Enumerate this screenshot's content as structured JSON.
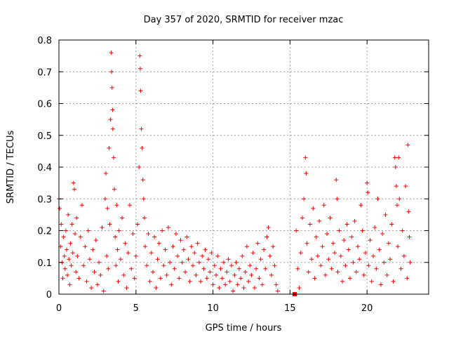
{
  "chart_data": {
    "type": "scatter",
    "title": "Day 357 of 2020, SRMTID for receiver mzac",
    "xlabel": "GPS time / hours",
    "ylabel": "SRMTID / TECUs",
    "xlim": [
      0,
      24
    ],
    "ylim": [
      0,
      0.8
    ],
    "x_ticks": [
      0,
      5,
      10,
      15,
      20
    ],
    "y_ticks": [
      0,
      0.1,
      0.2,
      0.3,
      0.4,
      0.5,
      0.6,
      0.7,
      0.8
    ],
    "x_tick_labels": [
      "0",
      "5",
      "10",
      "15",
      "20"
    ],
    "y_tick_labels": [
      "0",
      "0.1",
      "0.2",
      "0.3",
      "0.4",
      "0.5",
      "0.6",
      "0.7",
      "0.8"
    ],
    "grid": true,
    "marker": "plus",
    "marker_color": "#ff0000",
    "data_gap_hours": [
      14.2,
      15.3
    ],
    "outlier_marker": {
      "x": 15.3,
      "y": 0.0,
      "shape": "square"
    },
    "series": [
      {
        "name": "SRMTID",
        "points": [
          [
            0.0,
            0.3
          ],
          [
            0.05,
            0.27
          ],
          [
            0.1,
            0.15
          ],
          [
            0.15,
            0.22
          ],
          [
            0.2,
            0.1
          ],
          [
            0.25,
            0.05
          ],
          [
            0.3,
            0.18
          ],
          [
            0.35,
            0.12
          ],
          [
            0.4,
            0.08
          ],
          [
            0.45,
            0.2
          ],
          [
            0.5,
            0.14
          ],
          [
            0.55,
            0.06
          ],
          [
            0.6,
            0.25
          ],
          [
            0.65,
            0.11
          ],
          [
            0.7,
            0.03
          ],
          [
            0.75,
            0.16
          ],
          [
            0.8,
            0.09
          ],
          [
            0.85,
            0.22
          ],
          [
            0.9,
            0.13
          ],
          [
            0.95,
            0.35
          ],
          [
            1.0,
            0.33
          ],
          [
            1.05,
            0.19
          ],
          [
            1.1,
            0.07
          ],
          [
            1.15,
            0.24
          ],
          [
            1.2,
            0.12
          ],
          [
            1.3,
            0.05
          ],
          [
            1.4,
            0.18
          ],
          [
            1.5,
            0.28
          ],
          [
            1.6,
            0.09
          ],
          [
            1.7,
            0.15
          ],
          [
            1.8,
            0.04
          ],
          [
            1.9,
            0.2
          ],
          [
            2.0,
            0.11
          ],
          [
            2.1,
            0.02
          ],
          [
            2.2,
            0.14
          ],
          [
            2.3,
            0.07
          ],
          [
            2.4,
            0.17
          ],
          [
            2.5,
            0.03
          ],
          [
            2.6,
            0.1
          ],
          [
            2.7,
            0.06
          ],
          [
            2.8,
            0.21
          ],
          [
            2.9,
            0.01
          ],
          [
            3.0,
            0.3
          ],
          [
            3.05,
            0.38
          ],
          [
            3.1,
            0.12
          ],
          [
            3.15,
            0.27
          ],
          [
            3.2,
            0.08
          ],
          [
            3.25,
            0.46
          ],
          [
            3.3,
            0.22
          ],
          [
            3.35,
            0.55
          ],
          [
            3.4,
            0.76
          ],
          [
            3.42,
            0.7
          ],
          [
            3.45,
            0.65
          ],
          [
            3.48,
            0.58
          ],
          [
            3.5,
            0.52
          ],
          [
            3.55,
            0.43
          ],
          [
            3.6,
            0.33
          ],
          [
            3.65,
            0.18
          ],
          [
            3.7,
            0.09
          ],
          [
            3.75,
            0.28
          ],
          [
            3.8,
            0.14
          ],
          [
            3.85,
            0.04
          ],
          [
            3.9,
            0.2
          ],
          [
            4.0,
            0.11
          ],
          [
            4.1,
            0.24
          ],
          [
            4.2,
            0.06
          ],
          [
            4.3,
            0.16
          ],
          [
            4.4,
            0.02
          ],
          [
            4.5,
            0.13
          ],
          [
            4.6,
            0.28
          ],
          [
            4.7,
            0.08
          ],
          [
            4.8,
            0.19
          ],
          [
            4.9,
            0.05
          ],
          [
            5.0,
            0.12
          ],
          [
            5.1,
            0.22
          ],
          [
            5.2,
            0.4
          ],
          [
            5.25,
            0.75
          ],
          [
            5.28,
            0.71
          ],
          [
            5.3,
            0.64
          ],
          [
            5.35,
            0.52
          ],
          [
            5.4,
            0.46
          ],
          [
            5.45,
            0.36
          ],
          [
            5.5,
            0.3
          ],
          [
            5.55,
            0.24
          ],
          [
            5.6,
            0.15
          ],
          [
            5.7,
            0.09
          ],
          [
            5.8,
            0.19
          ],
          [
            5.9,
            0.04
          ],
          [
            6.0,
            0.13
          ],
          [
            6.1,
            0.07
          ],
          [
            6.2,
            0.18
          ],
          [
            6.3,
            0.02
          ],
          [
            6.4,
            0.11
          ],
          [
            6.5,
            0.16
          ],
          [
            6.6,
            0.05
          ],
          [
            6.7,
            0.2
          ],
          [
            6.8,
            0.09
          ],
          [
            6.9,
            0.14
          ],
          [
            7.0,
            0.06
          ],
          [
            7.1,
            0.21
          ],
          [
            7.2,
            0.1
          ],
          [
            7.3,
            0.03
          ],
          [
            7.4,
            0.15
          ],
          [
            7.5,
            0.08
          ],
          [
            7.6,
            0.19
          ],
          [
            7.7,
            0.12
          ],
          [
            7.8,
            0.05
          ],
          [
            7.9,
            0.17
          ],
          [
            8.0,
            0.1
          ],
          [
            8.1,
            0.14
          ],
          [
            8.2,
            0.07
          ],
          [
            8.3,
            0.18
          ],
          [
            8.4,
            0.11
          ],
          [
            8.5,
            0.04
          ],
          [
            8.6,
            0.15
          ],
          [
            8.7,
            0.09
          ],
          [
            8.8,
            0.13
          ],
          [
            8.9,
            0.06
          ],
          [
            9.0,
            0.16
          ],
          [
            9.1,
            0.1
          ],
          [
            9.2,
            0.04
          ],
          [
            9.3,
            0.12
          ],
          [
            9.4,
            0.08
          ],
          [
            9.5,
            0.14
          ],
          [
            9.6,
            0.05
          ],
          [
            9.7,
            0.11
          ],
          [
            9.8,
            0.07
          ],
          [
            9.9,
            0.13
          ],
          [
            10.0,
            0.03
          ],
          [
            10.1,
            0.09
          ],
          [
            10.2,
            0.06
          ],
          [
            10.3,
            0.12
          ],
          [
            10.4,
            0.02
          ],
          [
            10.5,
            0.08
          ],
          [
            10.6,
            0.05
          ],
          [
            10.7,
            0.1
          ],
          [
            10.8,
            0.03
          ],
          [
            10.9,
            0.07
          ],
          [
            11.0,
            0.11
          ],
          [
            11.1,
            0.04
          ],
          [
            11.2,
            0.09
          ],
          [
            11.3,
            0.01
          ],
          [
            11.4,
            0.06
          ],
          [
            11.5,
            0.1
          ],
          [
            11.6,
            0.03
          ],
          [
            11.7,
            0.08
          ],
          [
            11.8,
            0.05
          ],
          [
            11.9,
            0.12
          ],
          [
            12.0,
            0.02
          ],
          [
            12.1,
            0.07
          ],
          [
            12.2,
            0.15
          ],
          [
            12.3,
            0.04
          ],
          [
            12.4,
            0.09
          ],
          [
            12.5,
            0.06
          ],
          [
            12.6,
            0.13
          ],
          [
            12.7,
            0.02
          ],
          [
            12.8,
            0.08
          ],
          [
            12.9,
            0.16
          ],
          [
            13.0,
            0.05
          ],
          [
            13.1,
            0.11
          ],
          [
            13.2,
            0.03
          ],
          [
            13.3,
            0.14
          ],
          [
            13.4,
            0.08
          ],
          [
            13.5,
            0.18
          ],
          [
            13.6,
            0.21
          ],
          [
            13.7,
            0.12
          ],
          [
            13.8,
            0.06
          ],
          [
            13.9,
            0.15
          ],
          [
            14.0,
            0.09
          ],
          [
            14.1,
            0.03
          ],
          [
            14.2,
            0.01
          ],
          [
            15.4,
            0.2
          ],
          [
            15.5,
            0.08
          ],
          [
            15.6,
            0.02
          ],
          [
            15.7,
            0.13
          ],
          [
            15.8,
            0.24
          ],
          [
            15.9,
            0.3
          ],
          [
            16.0,
            0.43
          ],
          [
            16.05,
            0.38
          ],
          [
            16.1,
            0.16
          ],
          [
            16.2,
            0.07
          ],
          [
            16.3,
            0.22
          ],
          [
            16.4,
            0.11
          ],
          [
            16.5,
            0.27
          ],
          [
            16.6,
            0.05
          ],
          [
            16.7,
            0.18
          ],
          [
            16.8,
            0.12
          ],
          [
            16.9,
            0.23
          ],
          [
            17.0,
            0.09
          ],
          [
            17.1,
            0.15
          ],
          [
            17.2,
            0.28
          ],
          [
            17.3,
            0.06
          ],
          [
            17.4,
            0.19
          ],
          [
            17.5,
            0.11
          ],
          [
            17.6,
            0.24
          ],
          [
            17.7,
            0.08
          ],
          [
            17.8,
            0.16
          ],
          [
            17.9,
            0.13
          ],
          [
            18.0,
            0.36
          ],
          [
            18.05,
            0.3
          ],
          [
            18.1,
            0.07
          ],
          [
            18.2,
            0.2
          ],
          [
            18.3,
            0.12
          ],
          [
            18.4,
            0.04
          ],
          [
            18.5,
            0.17
          ],
          [
            18.6,
            0.09
          ],
          [
            18.7,
            0.22
          ],
          [
            18.8,
            0.14
          ],
          [
            18.9,
            0.05
          ],
          [
            19.0,
            0.18
          ],
          [
            19.1,
            0.1
          ],
          [
            19.2,
            0.23
          ],
          [
            19.3,
            0.07
          ],
          [
            19.4,
            0.15
          ],
          [
            19.5,
            0.11
          ],
          [
            19.6,
            0.28
          ],
          [
            19.7,
            0.2
          ],
          [
            19.8,
            0.06
          ],
          [
            19.9,
            0.13
          ],
          [
            20.0,
            0.35
          ],
          [
            20.05,
            0.32
          ],
          [
            20.1,
            0.09
          ],
          [
            20.2,
            0.17
          ],
          [
            20.3,
            0.04
          ],
          [
            20.4,
            0.12
          ],
          [
            20.5,
            0.21
          ],
          [
            20.6,
            0.08
          ],
          [
            20.7,
            0.3
          ],
          [
            20.8,
            0.14
          ],
          [
            20.9,
            0.03
          ],
          [
            21.0,
            0.19
          ],
          [
            21.1,
            0.1
          ],
          [
            21.2,
            0.25
          ],
          [
            21.3,
            0.06
          ],
          [
            21.4,
            0.16
          ],
          [
            21.5,
            0.11
          ],
          [
            21.6,
            0.22
          ],
          [
            21.7,
            0.04
          ],
          [
            21.8,
            0.43
          ],
          [
            21.85,
            0.4
          ],
          [
            21.9,
            0.34
          ],
          [
            21.95,
            0.28
          ],
          [
            22.0,
            0.15
          ],
          [
            22.05,
            0.43
          ],
          [
            22.1,
            0.3
          ],
          [
            22.2,
            0.08
          ],
          [
            22.3,
            0.2
          ],
          [
            22.4,
            0.12
          ],
          [
            22.5,
            0.34
          ],
          [
            22.6,
            0.05
          ],
          [
            22.65,
            0.47
          ],
          [
            22.7,
            0.26
          ],
          [
            22.75,
            0.18
          ],
          [
            22.8,
            0.1
          ]
        ]
      }
    ]
  }
}
